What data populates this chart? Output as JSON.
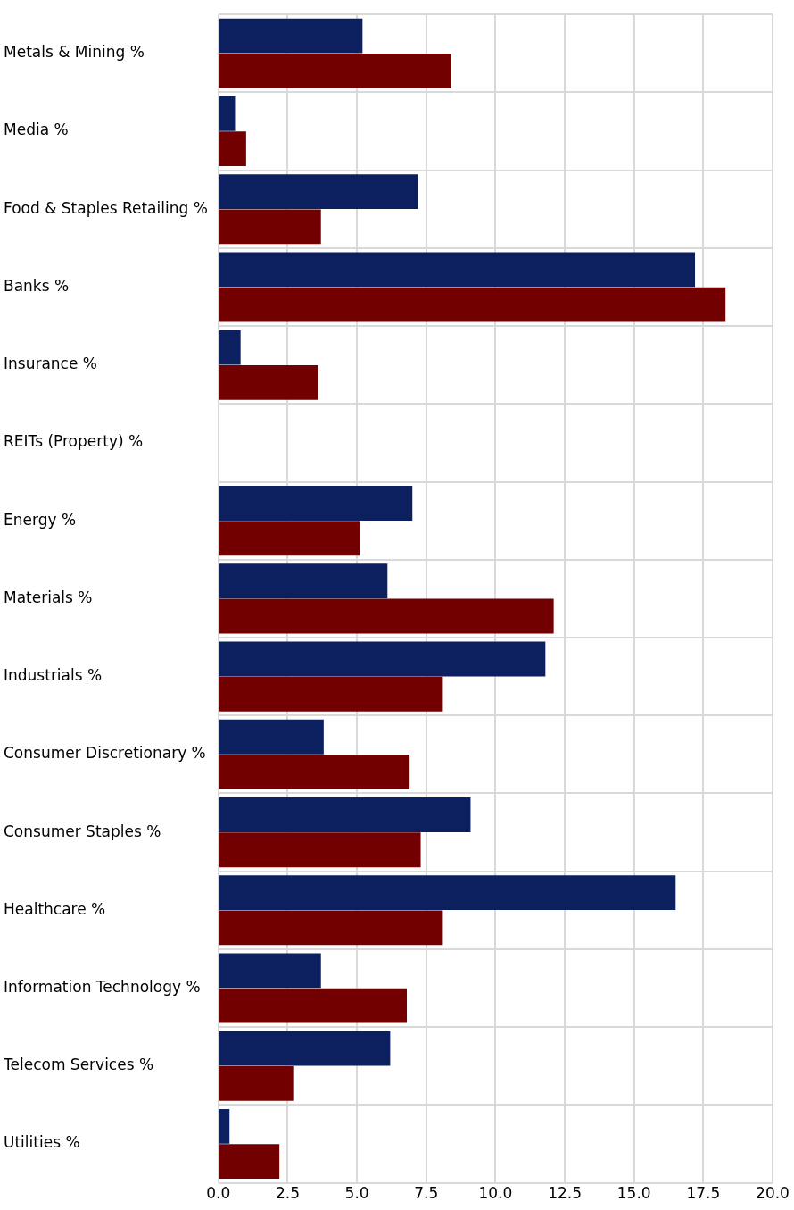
{
  "chart_data": {
    "type": "bar",
    "orientation": "horizontal",
    "categories": [
      "Metals & Mining %",
      "Media %",
      "Food & Staples Retailing %",
      "Banks %",
      "Insurance %",
      "REITs (Property) %",
      "Energy %",
      "Materials %",
      "Industrials %",
      "Consumer Discretionary %",
      "Consumer Staples %",
      "Healthcare %",
      "Information Technology %",
      "Telecom Services %",
      "Utilities %"
    ],
    "series": [
      {
        "color": "#0c1f5e",
        "values": [
          5.2,
          0.6,
          7.2,
          17.2,
          0.8,
          null,
          7.0,
          6.1,
          11.8,
          3.8,
          9.1,
          16.5,
          3.7,
          6.2,
          0.4
        ]
      },
      {
        "color": "#730000",
        "values": [
          8.4,
          1.0,
          3.7,
          18.3,
          3.6,
          null,
          5.1,
          12.1,
          8.1,
          6.9,
          7.3,
          8.1,
          6.8,
          2.7,
          2.2
        ]
      }
    ],
    "xlim": [
      0,
      20
    ],
    "xticks": [
      {
        "value": 0,
        "label": "0.0"
      },
      {
        "value": 2.5,
        "label": "2.5"
      },
      {
        "value": 5,
        "label": "5.0"
      },
      {
        "value": 7.5,
        "label": "7.5"
      },
      {
        "value": 10,
        "label": "10.0"
      },
      {
        "value": 12.5,
        "label": "12.5"
      },
      {
        "value": 15,
        "label": "15.0"
      },
      {
        "value": 17.5,
        "label": "17.5"
      },
      {
        "value": 20,
        "label": "20.0"
      }
    ],
    "grid": true,
    "legend": false
  }
}
